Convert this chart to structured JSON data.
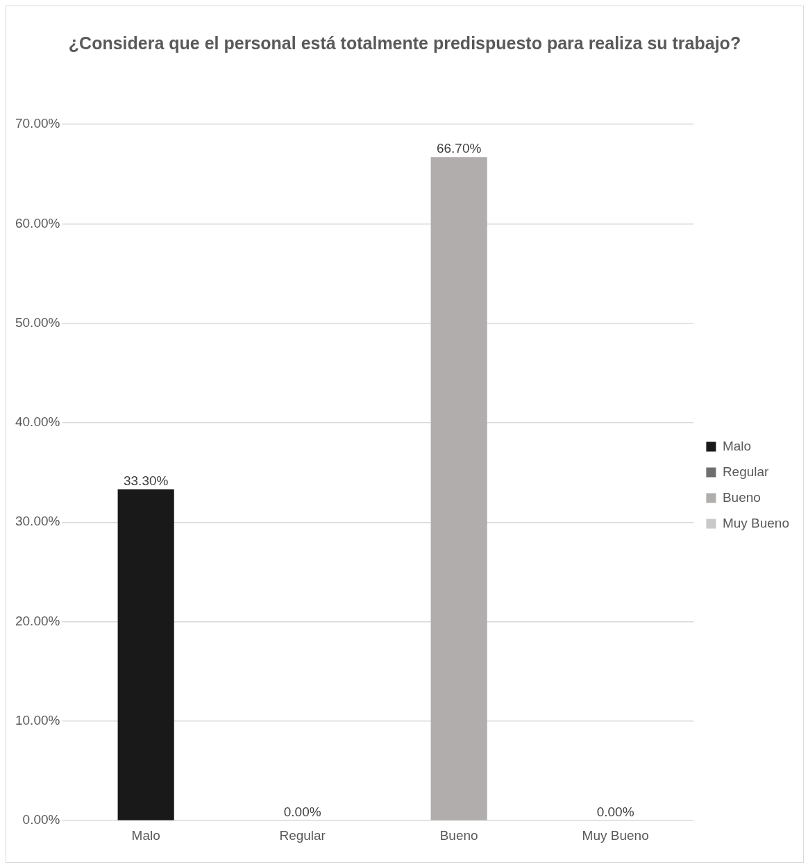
{
  "chart_data": {
    "type": "bar",
    "title": "¿Considera que el personal está totalmente predispuesto para realiza su trabajo?",
    "categories": [
      "Malo",
      "Regular",
      "Bueno",
      "Muy Bueno"
    ],
    "series": [
      {
        "name": "Malo",
        "color": "#1a191a",
        "values": [
          33.3,
          null,
          null,
          null
        ],
        "value_labels": [
          "33.30%",
          null,
          null,
          null
        ]
      },
      {
        "name": "Regular",
        "color": "#6f6d6d",
        "values": [
          null,
          0,
          null,
          null
        ],
        "value_labels": [
          null,
          "0.00%",
          null,
          null
        ]
      },
      {
        "name": "Bueno",
        "color": "#b0adac",
        "values": [
          null,
          null,
          66.7,
          null
        ],
        "value_labels": [
          null,
          null,
          "66.70%",
          null
        ]
      },
      {
        "name": "Muy Bueno",
        "color": "#c9c9c9",
        "values": [
          null,
          null,
          null,
          0
        ],
        "value_labels": [
          null,
          null,
          null,
          "0.00%"
        ]
      }
    ],
    "ylim": [
      0,
      70
    ],
    "yticks": [
      {
        "value": 0,
        "label": "0.00%"
      },
      {
        "value": 10,
        "label": "10.00%"
      },
      {
        "value": 20,
        "label": "20.00%"
      },
      {
        "value": 30,
        "label": "30.00%"
      },
      {
        "value": 40,
        "label": "40.00%"
      },
      {
        "value": 50,
        "label": "50.00%"
      },
      {
        "value": 60,
        "label": "60.00%"
      },
      {
        "value": 70,
        "label": "70.00%"
      }
    ],
    "grid": "y",
    "legend": "right"
  }
}
